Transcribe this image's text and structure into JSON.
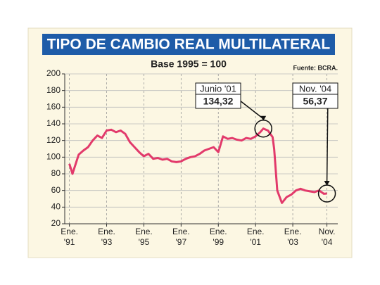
{
  "chart_data": {
    "type": "line",
    "title": "TIPO DE CAMBIO REAL MULTILATERAL",
    "subtitle": "Base 1995 = 100",
    "source": "Fuente: BCRA.",
    "x": [
      "1991-01",
      "1991-03",
      "1991-07",
      "1991-10",
      "1992-01",
      "1992-04",
      "1992-07",
      "1992-10",
      "1993-01",
      "1993-04",
      "1993-07",
      "1993-10",
      "1994-01",
      "1994-04",
      "1994-07",
      "1994-10",
      "1995-01",
      "1995-04",
      "1995-07",
      "1995-10",
      "1996-01",
      "1996-04",
      "1996-07",
      "1996-10",
      "1997-01",
      "1997-04",
      "1997-07",
      "1997-10",
      "1998-01",
      "1998-04",
      "1998-07",
      "1998-10",
      "1999-01",
      "1999-04",
      "1999-07",
      "1999-10",
      "2000-01",
      "2000-04",
      "2000-07",
      "2000-10",
      "2001-01",
      "2001-04",
      "2001-06",
      "2001-09",
      "2001-12",
      "2002-01",
      "2002-03",
      "2002-06",
      "2002-09",
      "2002-12",
      "2003-03",
      "2003-06",
      "2003-09",
      "2003-12",
      "2004-03",
      "2004-06",
      "2004-09",
      "2004-11"
    ],
    "series": [
      {
        "color": "#e23a6b",
        "values": [
          92,
          80,
          103,
          108,
          112,
          120,
          126,
          123,
          132,
          133,
          130,
          132,
          128,
          118,
          112,
          106,
          101,
          104,
          98,
          99,
          97,
          98,
          95,
          94,
          95,
          98,
          100,
          101,
          104,
          108,
          110,
          112,
          106,
          125,
          122,
          123,
          121,
          120,
          123,
          122,
          125,
          130,
          134.32,
          132,
          124,
          110,
          60,
          45,
          52,
          55,
          60,
          62,
          60,
          59,
          58,
          60,
          56,
          56.37
        ]
      }
    ],
    "xlim": [
      "1990-10",
      "2005-06"
    ],
    "xticks": [
      {
        "value": "1991-01",
        "label": "Ene. '91"
      },
      {
        "value": "1993-01",
        "label": "Ene. '93"
      },
      {
        "value": "1995-01",
        "label": "Ene. '95"
      },
      {
        "value": "1997-01",
        "label": "Ene. '97"
      },
      {
        "value": "1999-01",
        "label": "Ene. '99"
      },
      {
        "value": "2001-01",
        "label": "Ene. '01"
      },
      {
        "value": "2003-01",
        "label": "Ene. '03"
      },
      {
        "value": "2004-11",
        "label": "Nov. '04"
      }
    ],
    "ylim": [
      20,
      200
    ],
    "yticks": [
      20,
      40,
      60,
      80,
      100,
      120,
      140,
      160,
      180,
      200
    ],
    "grid": true,
    "annotations": [
      {
        "label": "Junio '01",
        "x": "2001-06",
        "value": 134.32,
        "value_label": "134,32"
      },
      {
        "label": "Nov. '04",
        "x": "2004-11",
        "value": 56.37,
        "value_label": "56,37"
      }
    ]
  }
}
